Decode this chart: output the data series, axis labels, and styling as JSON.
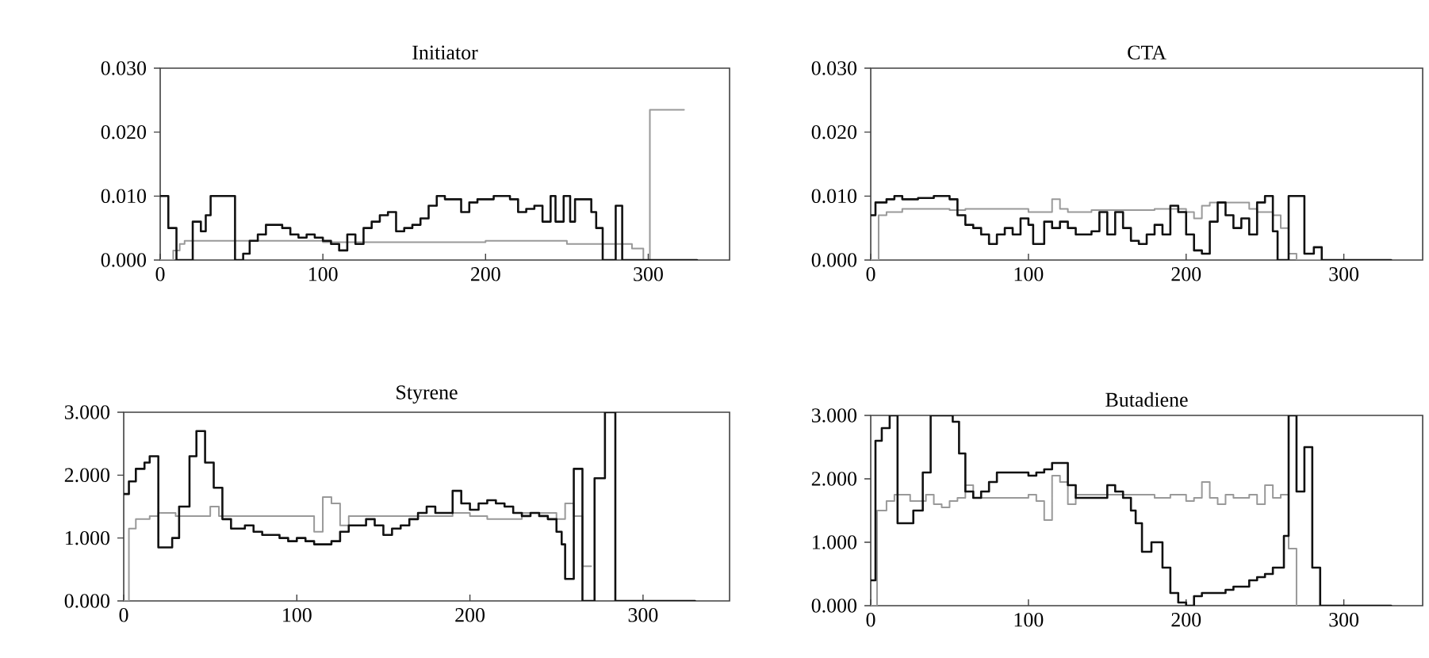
{
  "chart_data": [
    {
      "type": "step",
      "title": "Initiator",
      "xlim": [
        0,
        350
      ],
      "xticks": [
        0,
        100,
        200,
        300
      ],
      "ylim": [
        0,
        0.03
      ],
      "yticks": [
        {
          "value": 0,
          "label": "0.000"
        },
        {
          "value": 0.01,
          "label": "0.010"
        },
        {
          "value": 0.02,
          "label": "0.020"
        },
        {
          "value": 0.03,
          "label": "0.030"
        }
      ],
      "series": [
        {
          "color": "#999999",
          "x": [
            0,
            8,
            12,
            15,
            50,
            100,
            150,
            200,
            250,
            270,
            290,
            297,
            301,
            322
          ],
          "values": [
            0.0,
            0.0015,
            0.0025,
            0.003,
            0.003,
            0.0028,
            0.0028,
            0.003,
            0.0025,
            0.0025,
            0.0018,
            0.0,
            0.0235,
            0.0235
          ]
        },
        {
          "color": "#111111",
          "x": [
            0,
            5,
            10,
            20,
            25,
            28,
            31,
            46,
            51,
            55,
            60,
            65,
            75,
            80,
            85,
            90,
            95,
            100,
            105,
            110,
            115,
            120,
            125,
            130,
            135,
            140,
            145,
            150,
            155,
            160,
            165,
            170,
            175,
            180,
            185,
            190,
            195,
            200,
            205,
            215,
            220,
            225,
            230,
            235,
            240,
            243,
            248,
            252,
            255,
            260,
            265,
            268,
            272,
            280,
            284,
            330
          ],
          "values": [
            0.01,
            0.005,
            0.0,
            0.006,
            0.0045,
            0.007,
            0.01,
            0.0,
            0.001,
            0.003,
            0.004,
            0.0055,
            0.005,
            0.004,
            0.0035,
            0.004,
            0.0035,
            0.003,
            0.0025,
            0.0015,
            0.004,
            0.0025,
            0.005,
            0.006,
            0.007,
            0.0075,
            0.0045,
            0.005,
            0.0055,
            0.0065,
            0.0085,
            0.01,
            0.0095,
            0.0095,
            0.0075,
            0.009,
            0.0095,
            0.0095,
            0.01,
            0.0095,
            0.0075,
            0.008,
            0.0085,
            0.006,
            0.01,
            0.006,
            0.01,
            0.006,
            0.0095,
            0.0095,
            0.0075,
            0.005,
            0.0,
            0.0085,
            0.0,
            0.0
          ]
        }
      ]
    },
    {
      "type": "step",
      "title": "CTA",
      "xlim": [
        0,
        350
      ],
      "xticks": [
        0,
        100,
        200,
        300
      ],
      "ylim": [
        0,
        0.03
      ],
      "yticks": [
        {
          "value": 0,
          "label": "0.000"
        },
        {
          "value": 0.01,
          "label": "0.010"
        },
        {
          "value": 0.02,
          "label": "0.020"
        },
        {
          "value": 0.03,
          "label": "0.030"
        }
      ],
      "series": [
        {
          "color": "#999999",
          "x": [
            0,
            5,
            10,
            20,
            50,
            60,
            100,
            105,
            115,
            120,
            125,
            140,
            180,
            200,
            205,
            210,
            215,
            240,
            245,
            255,
            260,
            265,
            270,
            290
          ],
          "values": [
            0.0,
            0.007,
            0.0075,
            0.008,
            0.0078,
            0.008,
            0.0075,
            0.0075,
            0.0095,
            0.008,
            0.0075,
            0.0078,
            0.008,
            0.0075,
            0.0065,
            0.0085,
            0.009,
            0.008,
            0.0075,
            0.007,
            0.005,
            0.001,
            0.0,
            0.0
          ]
        },
        {
          "color": "#111111",
          "x": [
            0,
            3,
            10,
            15,
            20,
            30,
            40,
            50,
            55,
            60,
            65,
            70,
            75,
            80,
            85,
            90,
            95,
            100,
            103,
            110,
            115,
            120,
            125,
            130,
            140,
            145,
            150,
            155,
            160,
            165,
            170,
            175,
            180,
            185,
            190,
            195,
            200,
            205,
            210,
            215,
            220,
            225,
            230,
            235,
            240,
            245,
            250,
            255,
            258,
            265,
            275,
            281,
            286,
            330
          ],
          "values": [
            0.007,
            0.009,
            0.0095,
            0.01,
            0.0095,
            0.0097,
            0.01,
            0.0095,
            0.007,
            0.0055,
            0.005,
            0.004,
            0.0025,
            0.004,
            0.005,
            0.004,
            0.0065,
            0.0055,
            0.0025,
            0.006,
            0.005,
            0.006,
            0.005,
            0.004,
            0.0045,
            0.0075,
            0.004,
            0.0075,
            0.005,
            0.003,
            0.0025,
            0.004,
            0.0055,
            0.004,
            0.0085,
            0.0075,
            0.004,
            0.0015,
            0.001,
            0.006,
            0.009,
            0.007,
            0.005,
            0.0065,
            0.004,
            0.009,
            0.01,
            0.0045,
            0.0,
            0.01,
            0.001,
            0.002,
            0.0,
            0.0
          ]
        }
      ]
    },
    {
      "type": "step",
      "title": "Styrene",
      "xlim": [
        0,
        350
      ],
      "xticks": [
        0,
        100,
        200,
        300
      ],
      "ylim": [
        0,
        3
      ],
      "yticks": [
        {
          "value": 0,
          "label": "0.000"
        },
        {
          "value": 1,
          "label": "1.000"
        },
        {
          "value": 2,
          "label": "2.000"
        },
        {
          "value": 3,
          "label": "3.000"
        }
      ],
      "series": [
        {
          "color": "#999999",
          "x": [
            0,
            3,
            7,
            15,
            20,
            30,
            50,
            55,
            100,
            110,
            115,
            120,
            125,
            130,
            180,
            190,
            200,
            210,
            230,
            250,
            255,
            260,
            265,
            270
          ],
          "values": [
            0.0,
            1.15,
            1.3,
            1.35,
            1.4,
            1.35,
            1.5,
            1.35,
            1.35,
            1.1,
            1.65,
            1.55,
            1.2,
            1.35,
            1.35,
            1.4,
            1.35,
            1.3,
            1.4,
            1.3,
            1.55,
            1.35,
            0.55,
            0.55
          ]
        },
        {
          "color": "#111111",
          "x": [
            0,
            3,
            7,
            12,
            15,
            20,
            28,
            32,
            38,
            42,
            47,
            52,
            57,
            62,
            70,
            75,
            80,
            90,
            95,
            100,
            105,
            110,
            115,
            120,
            125,
            130,
            135,
            140,
            145,
            150,
            155,
            160,
            165,
            170,
            175,
            180,
            185,
            190,
            195,
            200,
            205,
            210,
            215,
            220,
            225,
            230,
            235,
            240,
            245,
            250,
            253,
            255,
            260,
            265,
            272,
            278,
            284,
            330
          ],
          "values": [
            1.7,
            1.9,
            2.1,
            2.2,
            2.3,
            0.85,
            1.0,
            1.5,
            2.3,
            2.7,
            2.2,
            1.8,
            1.3,
            1.15,
            1.2,
            1.1,
            1.05,
            1.0,
            0.95,
            1.0,
            0.95,
            0.9,
            0.9,
            0.95,
            1.1,
            1.2,
            1.2,
            1.3,
            1.2,
            1.05,
            1.15,
            1.2,
            1.3,
            1.4,
            1.5,
            1.4,
            1.4,
            1.75,
            1.55,
            1.45,
            1.55,
            1.6,
            1.55,
            1.5,
            1.4,
            1.35,
            1.4,
            1.35,
            1.3,
            1.1,
            0.9,
            0.35,
            2.1,
            0.0,
            1.95,
            3.0,
            0.0,
            0.0
          ]
        }
      ]
    },
    {
      "type": "step",
      "title": "Butadiene",
      "xlim": [
        0,
        350
      ],
      "xticks": [
        0,
        100,
        200,
        300
      ],
      "ylim": [
        0,
        3
      ],
      "yticks": [
        {
          "value": 0,
          "label": "0.000"
        },
        {
          "value": 1,
          "label": "1.000"
        },
        {
          "value": 2,
          "label": "2.000"
        },
        {
          "value": 3,
          "label": "3.000"
        }
      ],
      "series": [
        {
          "color": "#999999",
          "x": [
            0,
            4,
            10,
            15,
            25,
            35,
            40,
            45,
            50,
            55,
            60,
            65,
            100,
            105,
            110,
            115,
            120,
            125,
            130,
            170,
            180,
            190,
            200,
            205,
            210,
            215,
            220,
            225,
            230,
            240,
            245,
            250,
            255,
            260,
            265,
            270
          ],
          "values": [
            0.0,
            1.5,
            1.65,
            1.75,
            1.65,
            1.75,
            1.6,
            1.55,
            1.65,
            1.7,
            1.9,
            1.7,
            1.75,
            1.65,
            1.35,
            2.05,
            1.95,
            1.6,
            1.75,
            1.75,
            1.7,
            1.75,
            1.65,
            1.7,
            1.95,
            1.7,
            1.6,
            1.75,
            1.7,
            1.75,
            1.6,
            1.9,
            1.7,
            1.75,
            0.9,
            0.0
          ]
        },
        {
          "color": "#111111",
          "x": [
            0,
            3,
            7,
            12,
            17,
            27,
            33,
            38,
            52,
            56,
            60,
            65,
            70,
            75,
            80,
            90,
            100,
            105,
            110,
            115,
            125,
            130,
            140,
            150,
            155,
            160,
            165,
            168,
            172,
            178,
            185,
            190,
            195,
            200,
            205,
            210,
            225,
            230,
            240,
            245,
            250,
            255,
            262,
            265,
            270,
            275,
            280,
            285,
            330
          ],
          "values": [
            0.4,
            2.6,
            2.8,
            3.0,
            1.3,
            1.5,
            2.1,
            3.0,
            2.9,
            2.4,
            1.8,
            1.7,
            1.8,
            1.95,
            2.1,
            2.1,
            2.05,
            2.1,
            2.15,
            2.25,
            1.9,
            1.7,
            1.7,
            1.9,
            1.8,
            1.7,
            1.5,
            1.3,
            0.85,
            1.0,
            0.6,
            0.2,
            0.05,
            0.0,
            0.15,
            0.2,
            0.25,
            0.3,
            0.4,
            0.45,
            0.5,
            0.6,
            1.1,
            3.0,
            1.8,
            2.5,
            0.6,
            0.0,
            0.0
          ]
        }
      ]
    }
  ]
}
